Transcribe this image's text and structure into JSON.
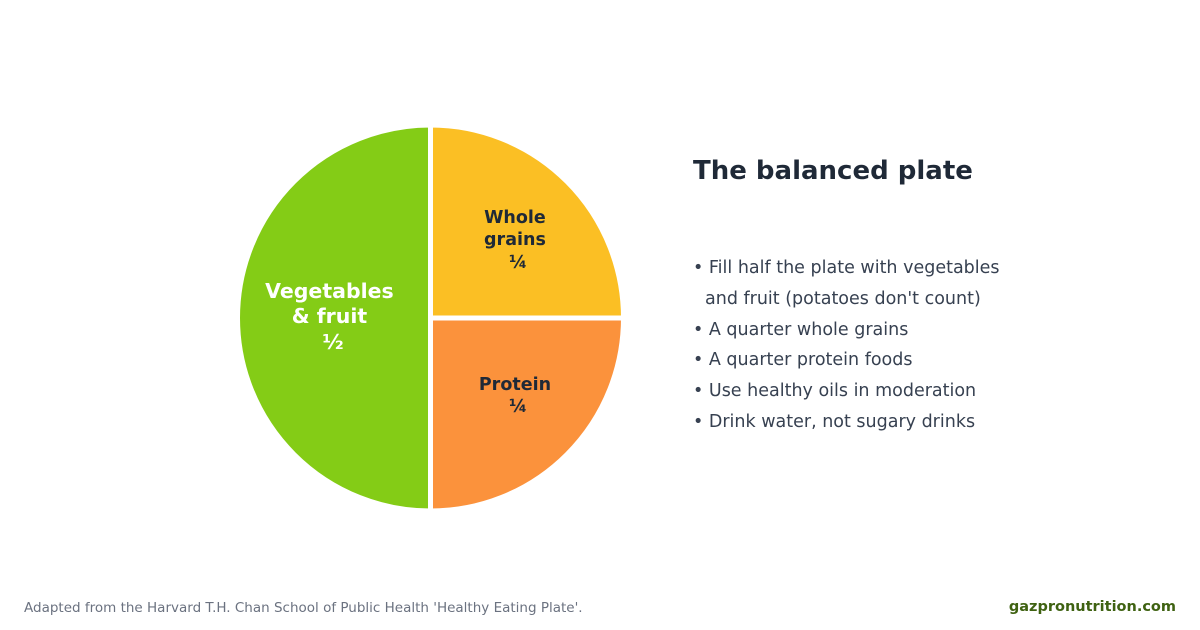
{
  "chart_data": {
    "type": "pie",
    "slices": [
      {
        "lines": [
          "Vegetables",
          "& fruit"
        ],
        "fraction_label": "½",
        "value": 0.5,
        "color": "#84cc16",
        "text_color": "#ffffff"
      },
      {
        "lines": [
          "Whole",
          "grains"
        ],
        "fraction_label": "¼",
        "value": 0.25,
        "color": "#fbbf24",
        "text_color": "#1f2937"
      },
      {
        "lines": [
          "Protein"
        ],
        "fraction_label": "¼",
        "value": 0.25,
        "color": "#fb923c",
        "text_color": "#1f2937"
      }
    ]
  },
  "panel": {
    "title": "The balanced plate",
    "bullets": [
      "• Fill half the plate with vegetables",
      "and fruit (potatoes don't count)",
      "• A quarter whole grains",
      "• A quarter protein foods",
      "• Use healthy oils in moderation",
      "• Drink water, not sugary drinks"
    ]
  },
  "footer": {
    "source_note": "Adapted from the Harvard T.H. Chan School of Public Health 'Healthy Eating Plate'.",
    "brand": "gazpronutrition.com"
  }
}
